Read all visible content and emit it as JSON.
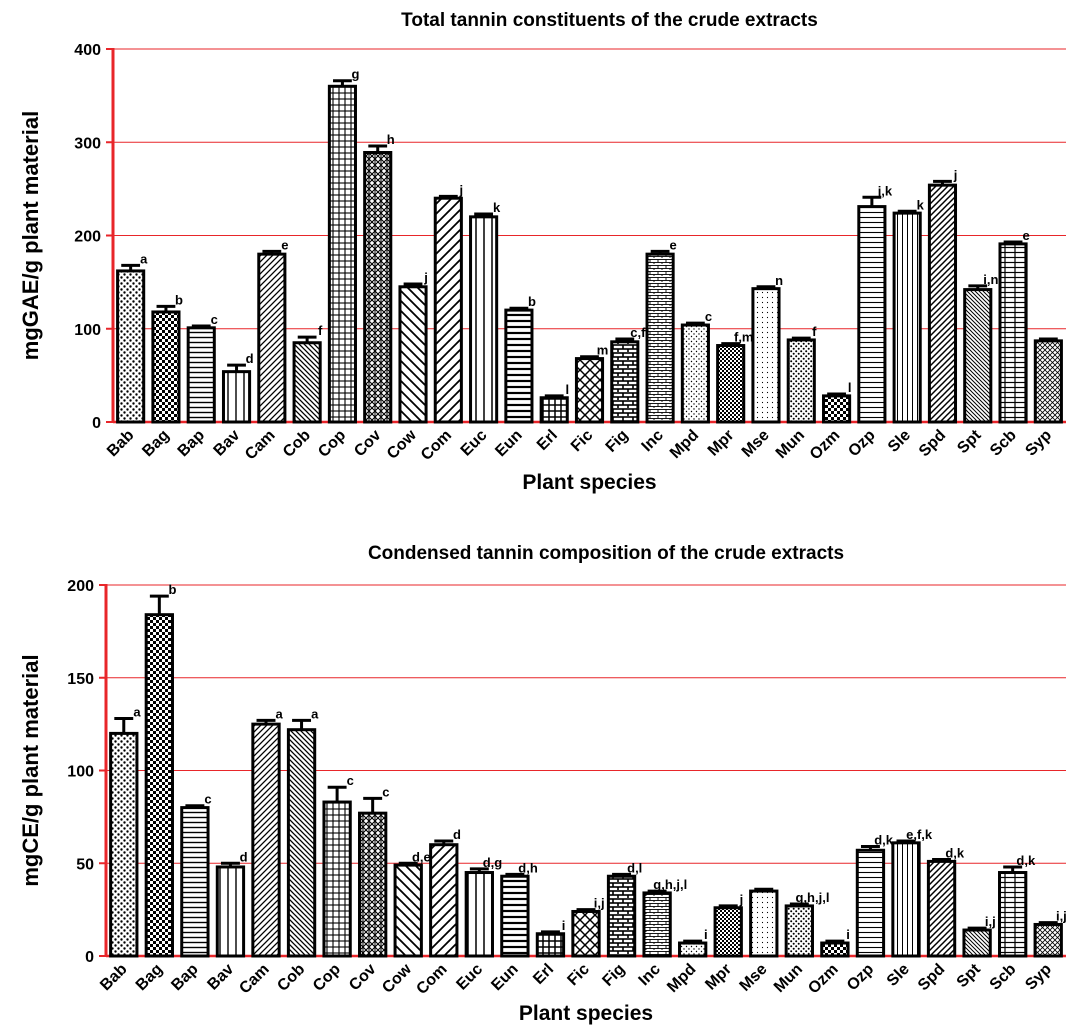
{
  "colors": {
    "axis": "#e8262a",
    "grid": "#e8262a",
    "bar_stroke": "#000000",
    "text": "#000000"
  },
  "chart_data": [
    {
      "type": "bar",
      "title": "Total tannin constituents of the crude extracts",
      "xlabel": "Plant species",
      "ylabel": "mgGAE/g plant material",
      "ylim": [
        0,
        400
      ],
      "yticks": [
        0,
        100,
        200,
        300,
        400
      ],
      "grid": true,
      "categories": [
        "Bab",
        "Bag",
        "Bap",
        "Bav",
        "Cam",
        "Cob",
        "Cop",
        "Cov",
        "Cow",
        "Com",
        "Euc",
        "Eun",
        "Erl",
        "Fic",
        "Fig",
        "Inc",
        "Mpd",
        "Mpr",
        "Mse",
        "Mun",
        "Ozm",
        "Ozp",
        "Sle",
        "Spd",
        "Spt",
        "Scb",
        "Syp"
      ],
      "values": [
        162,
        118,
        101,
        54,
        180,
        85,
        360,
        289,
        145,
        240,
        220,
        120,
        26,
        68,
        86,
        180,
        104,
        82,
        143,
        88,
        28,
        231,
        224,
        254,
        142,
        191,
        87
      ],
      "errors": [
        6,
        6,
        2,
        7,
        3,
        6,
        6,
        7,
        3,
        2,
        3,
        2,
        2,
        2,
        3,
        3,
        2,
        2,
        2,
        2,
        2,
        10,
        2,
        4,
        4,
        2,
        2
      ],
      "labels": [
        "a",
        "b",
        "c",
        "d",
        "e",
        "f",
        "g",
        "h",
        "j",
        "j",
        "k",
        "b",
        "l",
        "m",
        "c,f",
        "e",
        "c",
        "f,m",
        "n",
        "f",
        "l",
        "j,k",
        "k",
        "j",
        "i,n",
        "e",
        ""
      ],
      "patterns": [
        "bab",
        "bag",
        "bap",
        "bav",
        "cam",
        "cob",
        "cop",
        "cov",
        "cow",
        "com",
        "euc",
        "eun",
        "erl",
        "fic",
        "fig",
        "inc",
        "mpd",
        "mpr",
        "mse",
        "mun",
        "ozm",
        "ozp",
        "sle",
        "spd",
        "spt",
        "scb",
        "syp"
      ]
    },
    {
      "type": "bar",
      "title": "Condensed tannin composition of the crude extracts",
      "xlabel": "Plant species",
      "ylabel": "mgCE/g plant material",
      "ylim": [
        0,
        200
      ],
      "yticks": [
        0,
        50,
        100,
        150,
        200
      ],
      "grid": true,
      "categories": [
        "Bab",
        "Bag",
        "Bap",
        "Bav",
        "Cam",
        "Cob",
        "Cop",
        "Cov",
        "Cow",
        "Com",
        "Euc",
        "Eun",
        "Erl",
        "Fic",
        "Fig",
        "Inc",
        "Mpd",
        "Mpr",
        "Mse",
        "Mun",
        "Ozm",
        "Ozp",
        "Sle",
        "Spd",
        "Spt",
        "Scb",
        "Syp"
      ],
      "values": [
        120,
        184,
        80,
        48,
        125,
        122,
        83,
        77,
        49,
        60,
        45,
        43,
        12,
        24,
        43,
        34,
        7,
        26,
        35,
        27,
        7,
        57,
        61,
        51,
        14,
        45,
        17
      ],
      "errors": [
        8,
        10,
        1,
        2,
        2,
        5,
        8,
        8,
        1,
        2,
        2,
        1,
        1,
        1,
        1,
        1,
        1,
        1,
        1,
        1,
        1,
        2,
        1,
        1,
        1,
        3,
        1
      ],
      "labels": [
        "a",
        "b",
        "c",
        "d",
        "a",
        "a",
        "c",
        "c",
        "d,e",
        "d",
        "d,g",
        "d,h",
        "i",
        "i,j",
        "d,l",
        "g,h,j,l",
        "i",
        "j",
        "",
        "g,h,j,l",
        "i",
        "d,k",
        "e,f,k",
        "d,k",
        "i,j",
        "d,k",
        "i,j"
      ],
      "patterns": [
        "bab",
        "bag",
        "bap",
        "bav",
        "cam",
        "cob",
        "cop",
        "cov",
        "cow",
        "com",
        "euc",
        "eun",
        "erl",
        "fic",
        "fig",
        "inc",
        "mpd",
        "mpr",
        "mse",
        "mun",
        "ozm",
        "ozp",
        "sle",
        "spd",
        "spt",
        "scb",
        "syp"
      ]
    }
  ]
}
